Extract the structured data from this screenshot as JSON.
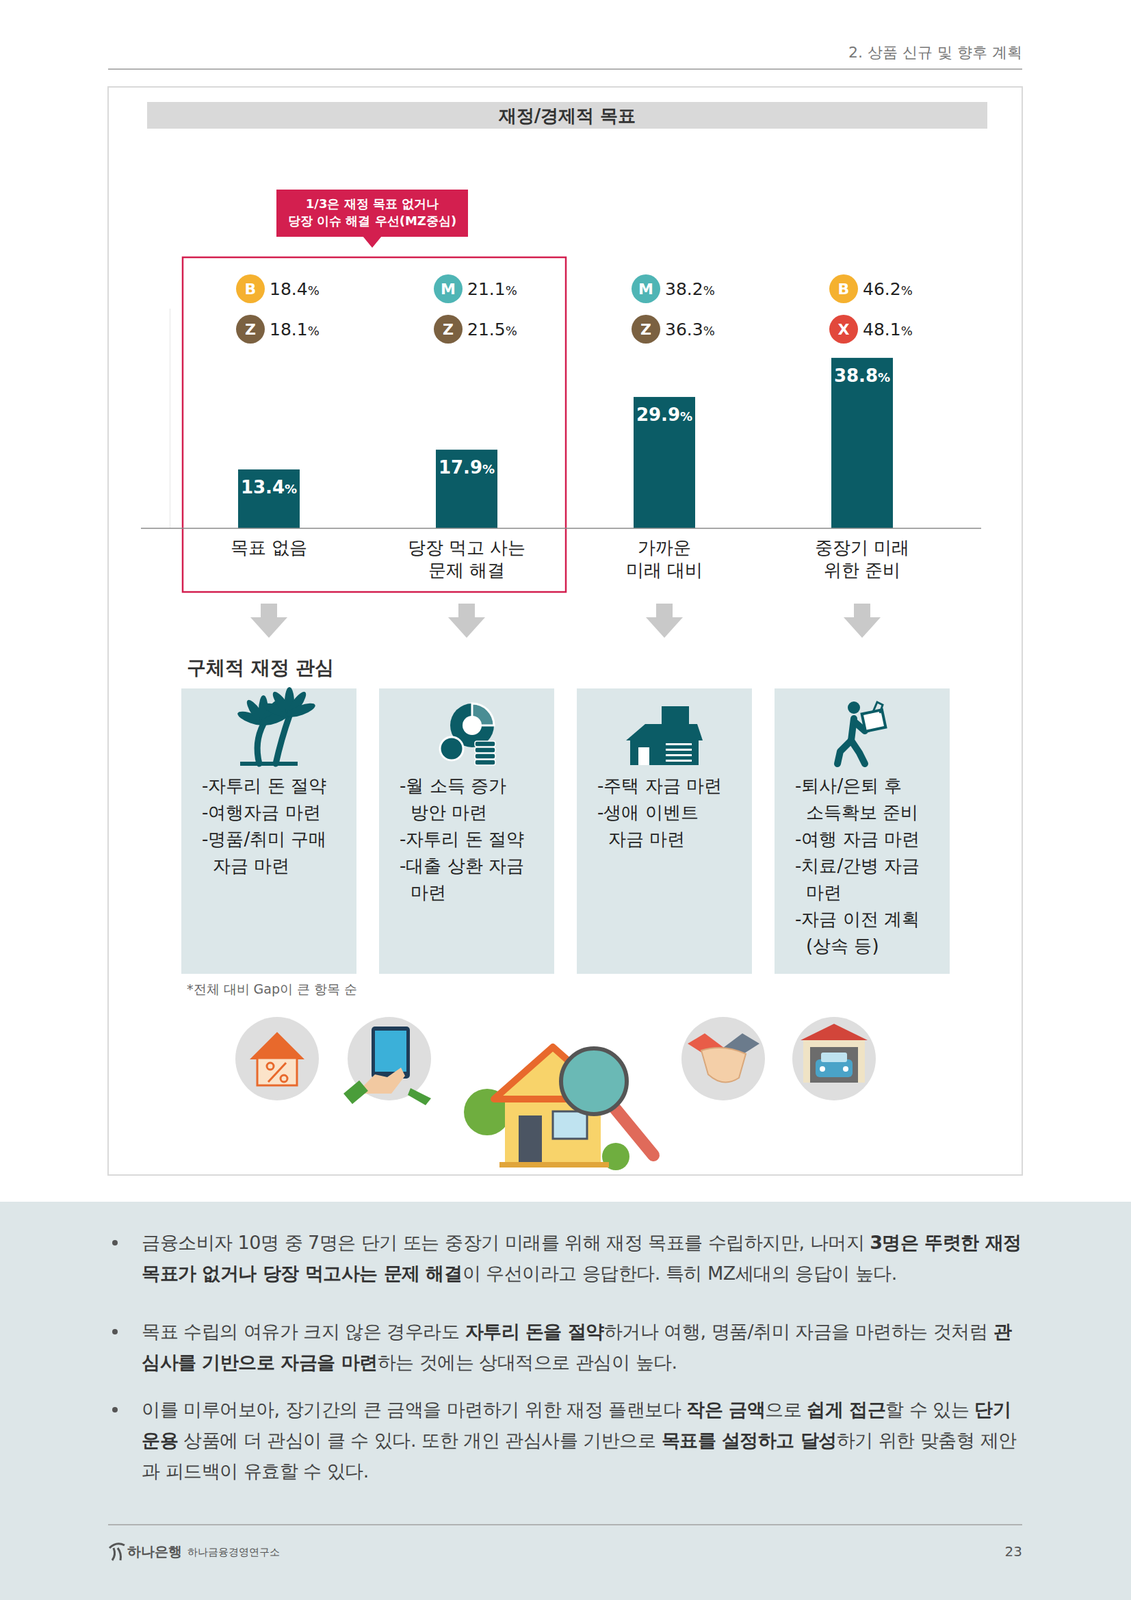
{
  "header": {
    "section": "2. 상품 신규 및 향후 계획"
  },
  "chart_data": {
    "type": "bar",
    "title": "재정/경제적 목표",
    "categories": [
      "목표 없음",
      "당장 먹고 사는\n문제 해결",
      "가까운\n미래 대비",
      "중장기 미래\n위한 준비"
    ],
    "values": [
      13.4,
      17.9,
      29.9,
      38.8
    ],
    "value_labels": [
      "13.4%",
      "17.9%",
      "29.9%",
      "38.8%"
    ],
    "color": "#0b5c66",
    "ylim": [
      0,
      50
    ],
    "yticks": [],
    "tick_labels": false,
    "data_labels": true,
    "callout": "1/3은 재정 목표 없거나\n당장 이슈 해결 우선(MZ중심)",
    "generation_shares": [
      [
        {
          "letter": "B",
          "value": 18.4,
          "value_label": "18.4%",
          "color": "#f5b12f"
        },
        {
          "letter": "Z",
          "value": 18.1,
          "value_label": "18.1%",
          "color": "#7b6141"
        }
      ],
      [
        {
          "letter": "M",
          "value": 21.1,
          "value_label": "21.1%",
          "color": "#4fb5b5"
        },
        {
          "letter": "Z",
          "value": 21.5,
          "value_label": "21.5%",
          "color": "#7b6141"
        }
      ],
      [
        {
          "letter": "M",
          "value": 38.2,
          "value_label": "38.2%",
          "color": "#4fb5b5"
        },
        {
          "letter": "Z",
          "value": 36.3,
          "value_label": "36.3%",
          "color": "#7b6141"
        }
      ],
      [
        {
          "letter": "B",
          "value": 46.2,
          "value_label": "46.2%",
          "color": "#f5b12f"
        },
        {
          "letter": "X",
          "value": 48.1,
          "value_label": "48.1%",
          "color": "#e2483b"
        }
      ]
    ]
  },
  "interests": {
    "title": "구체적 재정 관심",
    "boxes": [
      [
        "-자투리 돈 절약",
        "-여행자금 마련",
        "-명품/취미 구매\n자금 마련"
      ],
      [
        "-월 소득 증가\n방안 마련",
        "-자투리 돈 절약",
        "-대출 상환 자금\n마련"
      ],
      [
        "-주택 자금 마련",
        "-생애 이벤트\n자금 마련"
      ],
      [
        "-퇴사/은퇴 후\n소득확보 준비",
        "-여행 자금 마련",
        "-치료/간병 자금\n마련",
        "-자금 이전 계획\n(상속 등)"
      ]
    ],
    "footnote": "*전체 대비 Gap이 큰 항목 순"
  },
  "notes": [
    [
      {
        "text": "금융소비자 10명 중 7명은 단기 또는 중장기 미래를 위해 재정 목표를 수립하지만, 나머지 ",
        "bold": false
      },
      {
        "text": "3명은 뚜렷한 재정 목표가 없거나 당장 먹고사는 문제 해결",
        "bold": true
      },
      {
        "text": "이 우선이라고 응답한다. 특히 MZ세대의 응답이 높다.",
        "bold": false
      }
    ],
    [
      {
        "text": "목표 수립의 여유가 크지 않은 경우라도 ",
        "bold": false
      },
      {
        "text": "자투리 돈을 절약",
        "bold": true
      },
      {
        "text": "하거나 여행, 명품/취미 자금을 마련하는 것처럼 ",
        "bold": false
      },
      {
        "text": "관심사를 기반으로 자금을 마련",
        "bold": true
      },
      {
        "text": "하는 것에는 상대적으로 관심이 높다.",
        "bold": false
      }
    ],
    [
      {
        "text": "이를 미루어보아, 장기간의 큰 금액을 마련하기 위한 재정 플랜보다 ",
        "bold": false
      },
      {
        "text": "작은 금액",
        "bold": true
      },
      {
        "text": "으로 ",
        "bold": false
      },
      {
        "text": "쉽게 접근",
        "bold": true
      },
      {
        "text": "할 수 있는 ",
        "bold": false
      },
      {
        "text": "단기 운용",
        "bold": true
      },
      {
        "text": " 상품에 더 관심이 클 수 있다. 또한 개인 관심사를 기반으로 ",
        "bold": false
      },
      {
        "text": "목표를 설정하고 달성",
        "bold": true
      },
      {
        "text": "하기 위한 맞춤형 제안과 피드백이 유효할 수 있다.",
        "bold": false
      }
    ]
  ],
  "footer": {
    "brand": "하나은행",
    "institute": "하나금융경영연구소",
    "page": 23
  }
}
